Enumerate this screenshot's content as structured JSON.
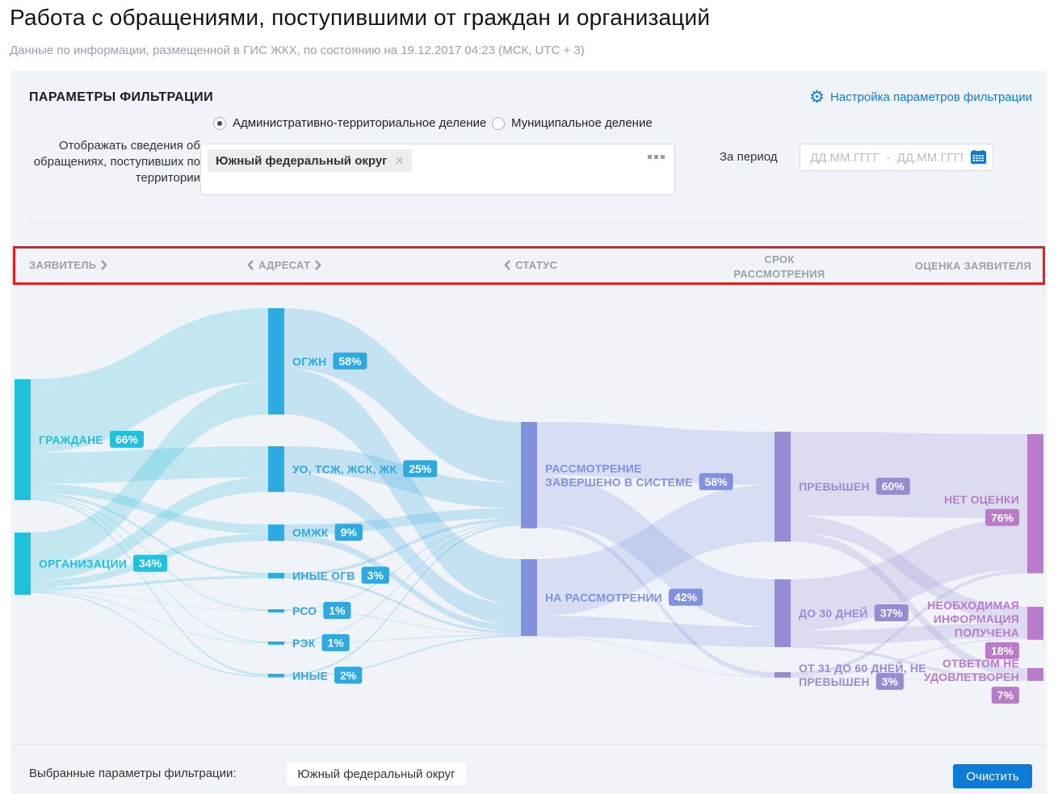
{
  "page": {
    "title": "Работа с обращениями, поступившими от граждан и организаций",
    "subtitle": "Данные по информации, размещенной в ГИС ЖКХ, по состоянию на 19.12.2017 04:23 (МСК, UTC + 3)"
  },
  "filter_panel": {
    "heading": "ПАРАМЕТРЫ ФИЛЬТРАЦИИ",
    "settings_link": "Настройка параметров фильтрации",
    "radio_options": [
      {
        "label": "Административно-территориальное деление",
        "selected": true
      },
      {
        "label": "Муниципальное деление",
        "selected": false
      }
    ],
    "territory_label": "Отображать сведения об обращениях, поступивших по территории",
    "territory_tag": "Южный федеральный округ",
    "period_label": "За период",
    "period_placeholder": "ДД.ММ.ГГГГ  -  ДД.ММ.ГГГГ"
  },
  "column_headers": [
    {
      "label": "ЗАЯВИТЕЛЬ",
      "chevrons": "right"
    },
    {
      "label": "АДРЕСАТ",
      "chevrons": "both"
    },
    {
      "label": "СТАТУС",
      "chevrons": "left"
    },
    {
      "label": "СРОК РАССМОТРЕНИЯ",
      "chevrons": "none"
    },
    {
      "label": "ОЦЕНКА ЗАЯВИТЕЛЯ",
      "chevrons": "none"
    }
  ],
  "chart_data": {
    "type": "sankey",
    "unit": "percent",
    "columns": [
      {
        "name": "ЗАЯВИТЕЛЬ",
        "color": "#1fc1dc",
        "nodes": [
          {
            "id": "grazhdane",
            "label_lines": [
              "ГРАЖДАНЕ"
            ],
            "pct": "66%",
            "value": 66
          },
          {
            "id": "organizacii",
            "label_lines": [
              "ОРГАНИЗАЦИИ"
            ],
            "pct": "34%",
            "value": 34
          }
        ]
      },
      {
        "name": "АДРЕСАТ",
        "color": "#2daae1",
        "nodes": [
          {
            "id": "ogzhn",
            "label_lines": [
              "ОГЖН"
            ],
            "pct": "58%",
            "value": 58
          },
          {
            "id": "uo",
            "label_lines": [
              "УО, ТСЖ, ЖСК, ЖК"
            ],
            "pct": "25%",
            "value": 25
          },
          {
            "id": "omzhk",
            "label_lines": [
              "ОМЖК"
            ],
            "pct": "9%",
            "value": 9
          },
          {
            "id": "inye_ogv",
            "label_lines": [
              "ИНЫЕ ОГВ"
            ],
            "pct": "3%",
            "value": 3
          },
          {
            "id": "rso",
            "label_lines": [
              "РСО"
            ],
            "pct": "1%",
            "value": 1
          },
          {
            "id": "rek",
            "label_lines": [
              "РЭК"
            ],
            "pct": "1%",
            "value": 1
          },
          {
            "id": "inye",
            "label_lines": [
              "ИНЫЕ"
            ],
            "pct": "2%",
            "value": 2
          }
        ]
      },
      {
        "name": "СТАТУС",
        "color": "#8191dd",
        "nodes": [
          {
            "id": "completed",
            "label_lines": [
              "РАССМОТРЕНИЕ",
              "ЗАВЕРШЕНО В СИСТЕМЕ"
            ],
            "pct": "58%",
            "value": 58
          },
          {
            "id": "in_progress",
            "label_lines": [
              "НА РАССМОТРЕНИИ"
            ],
            "pct": "42%",
            "value": 42
          }
        ]
      },
      {
        "name": "СРОК РАССМОТРЕНИЯ",
        "color": "#988bd5",
        "nodes": [
          {
            "id": "exceeded",
            "label_lines": [
              "ПРЕВЫШЕН"
            ],
            "pct": "60%",
            "value": 60
          },
          {
            "id": "up30",
            "label_lines": [
              "ДО 30 ДНЕЙ"
            ],
            "pct": "37%",
            "value": 37
          },
          {
            "id": "d31_60",
            "label_lines": [
              "ОТ 31 ДО 60 ДНЕЙ, НЕ",
              "ПРЕВЫШЕН"
            ],
            "pct": "3%",
            "value": 3
          }
        ]
      },
      {
        "name": "ОЦЕНКА ЗАЯВИТЕЛЯ",
        "color": "#ba7bca",
        "nodes": [
          {
            "id": "no_rating",
            "label_lines": [
              "НЕТ ОЦЕНКИ"
            ],
            "pct": "76%",
            "value": 76
          },
          {
            "id": "info_received",
            "label_lines": [
              "НЕОБХОДИМАЯ",
              "ИНФОРМАЦИЯ",
              "ПОЛУЧЕНА"
            ],
            "pct": "18%",
            "value": 18
          },
          {
            "id": "not_satisfied",
            "label_lines": [
              "ОТВЕТОМ НЕ",
              "УДОВЛЕТВОРЕН"
            ],
            "pct": "7%",
            "value": 7
          }
        ]
      }
    ],
    "links": [
      {
        "s": "grazhdane",
        "t": "ogzhn",
        "v": 40
      },
      {
        "s": "grazhdane",
        "t": "uo",
        "v": 17
      },
      {
        "s": "grazhdane",
        "t": "omzhk",
        "v": 5
      },
      {
        "s": "grazhdane",
        "t": "inye_ogv",
        "v": 1.5
      },
      {
        "s": "grazhdane",
        "t": "rso",
        "v": 0.7
      },
      {
        "s": "grazhdane",
        "t": "rek",
        "v": 0.6
      },
      {
        "s": "grazhdane",
        "t": "inye",
        "v": 1.2
      },
      {
        "s": "organizacii",
        "t": "ogzhn",
        "v": 18
      },
      {
        "s": "organizacii",
        "t": "uo",
        "v": 8
      },
      {
        "s": "organizacii",
        "t": "omzhk",
        "v": 4
      },
      {
        "s": "organizacii",
        "t": "inye_ogv",
        "v": 1.5
      },
      {
        "s": "organizacii",
        "t": "rso",
        "v": 0.3
      },
      {
        "s": "organizacii",
        "t": "rek",
        "v": 0.4
      },
      {
        "s": "organizacii",
        "t": "inye",
        "v": 0.8
      },
      {
        "s": "ogzhn",
        "t": "completed",
        "v": 33
      },
      {
        "s": "ogzhn",
        "t": "in_progress",
        "v": 25
      },
      {
        "s": "uo",
        "t": "completed",
        "v": 14
      },
      {
        "s": "uo",
        "t": "in_progress",
        "v": 11
      },
      {
        "s": "omzhk",
        "t": "completed",
        "v": 5.5
      },
      {
        "s": "omzhk",
        "t": "in_progress",
        "v": 3.5
      },
      {
        "s": "inye_ogv",
        "t": "completed",
        "v": 1.7
      },
      {
        "s": "inye_ogv",
        "t": "in_progress",
        "v": 1.3
      },
      {
        "s": "rso",
        "t": "completed",
        "v": 0.6
      },
      {
        "s": "rso",
        "t": "in_progress",
        "v": 0.4
      },
      {
        "s": "rek",
        "t": "completed",
        "v": 0.6
      },
      {
        "s": "rek",
        "t": "in_progress",
        "v": 0.4
      },
      {
        "s": "inye",
        "t": "completed",
        "v": 1.2
      },
      {
        "s": "inye",
        "t": "in_progress",
        "v": 0.8
      },
      {
        "s": "completed",
        "t": "exceeded",
        "v": 29
      },
      {
        "s": "completed",
        "t": "up30",
        "v": 26
      },
      {
        "s": "completed",
        "t": "d31_60",
        "v": 2.6
      },
      {
        "s": "in_progress",
        "t": "exceeded",
        "v": 31
      },
      {
        "s": "in_progress",
        "t": "up30",
        "v": 11
      },
      {
        "s": "in_progress",
        "t": "d31_60",
        "v": 0.4
      },
      {
        "s": "exceeded",
        "t": "no_rating",
        "v": 46
      },
      {
        "s": "exceeded",
        "t": "info_received",
        "v": 9
      },
      {
        "s": "exceeded",
        "t": "not_satisfied",
        "v": 5
      },
      {
        "s": "up30",
        "t": "no_rating",
        "v": 28
      },
      {
        "s": "up30",
        "t": "info_received",
        "v": 8
      },
      {
        "s": "up30",
        "t": "not_satisfied",
        "v": 1.5
      },
      {
        "s": "d31_60",
        "t": "no_rating",
        "v": 2
      },
      {
        "s": "d31_60",
        "t": "info_received",
        "v": 0.7
      },
      {
        "s": "d31_60",
        "t": "not_satisfied",
        "v": 0.3
      }
    ]
  },
  "footer": {
    "label": "Выбранные параметры фильтрации:",
    "selected_tag": "Южный федеральный округ",
    "clear_button": "Очистить"
  },
  "colors": {
    "accent_blue": "#0f7ad6",
    "panel_bg": "#f0f3f8",
    "highlight_red": "#e91d1b"
  }
}
